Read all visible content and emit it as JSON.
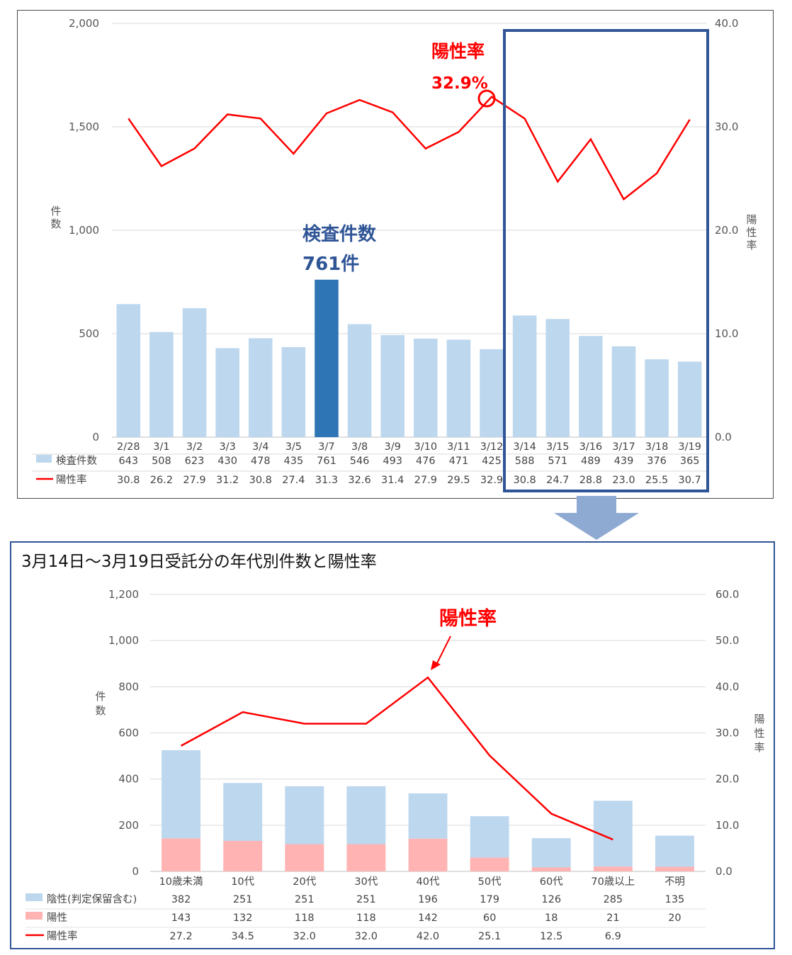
{
  "chart_data": [
    {
      "type": "bar",
      "categories": [
        "2/28",
        "3/1",
        "3/2",
        "3/3",
        "3/4",
        "3/5",
        "3/7",
        "3/8",
        "3/9",
        "3/10",
        "3/11",
        "3/12",
        "3/14",
        "3/15",
        "3/16",
        "3/17",
        "3/18",
        "3/19"
      ],
      "series": [
        {
          "name": "検査件数",
          "type": "bar",
          "axis": "left",
          "color": "#bdd7ee",
          "highlight_color": "#2e75b6",
          "highlight_index": 6,
          "values": [
            643,
            508,
            623,
            430,
            478,
            435,
            761,
            546,
            493,
            476,
            471,
            425,
            588,
            571,
            489,
            439,
            376,
            365
          ]
        },
        {
          "name": "陽性率",
          "type": "line",
          "axis": "right",
          "color": "#ff0000",
          "values": [
            30.8,
            26.2,
            27.9,
            31.2,
            30.8,
            27.4,
            31.3,
            32.6,
            31.4,
            27.9,
            29.5,
            32.9,
            30.8,
            24.7,
            28.8,
            23.0,
            25.5,
            30.7
          ]
        }
      ],
      "ylabel": "件数",
      "y2label": "陽性率",
      "ylim": [
        0,
        2000
      ],
      "y2lim": [
        0,
        40
      ],
      "yticks": [
        "0",
        "500",
        "1,000",
        "1,500",
        "2,000"
      ],
      "y2ticks": [
        "0.0",
        "10.0",
        "20.0",
        "30.0",
        "40.0"
      ],
      "grid": true,
      "table": {
        "rows": [
          {
            "label": "検査件数",
            "values": [
              "643",
              "508",
              "623",
              "430",
              "478",
              "435",
              "761",
              "546",
              "493",
              "476",
              "471",
              "425",
              "588",
              "571",
              "489",
              "439",
              "376",
              "365"
            ]
          },
          {
            "label": "陽性率",
            "values": [
              "30.8",
              "26.2",
              "27.9",
              "31.2",
              "30.8",
              "27.4",
              "31.3",
              "32.6",
              "31.4",
              "27.9",
              "29.5",
              "32.9",
              "30.8",
              "24.7",
              "28.8",
              "23.0",
              "25.5",
              "30.7"
            ]
          }
        ]
      },
      "annotations": [
        {
          "text": "陽性率",
          "color": "#ff0000"
        },
        {
          "text": "32.9%",
          "color": "#ff0000"
        },
        {
          "text": "検査件数",
          "color": "#2f5597"
        },
        {
          "text": "761件",
          "color": "#2f5597"
        }
      ],
      "highlight_box": {
        "from": "3/14",
        "to": "3/19",
        "color": "#2f5597"
      }
    },
    {
      "type": "bar",
      "title": "3月14日～3月19日受託分の年代別件数と陽性率",
      "categories": [
        "10歳未満",
        "10代",
        "20代",
        "30代",
        "40代",
        "50代",
        "60代",
        "70歳以上",
        "不明"
      ],
      "stacked": true,
      "series": [
        {
          "name": "陰性(判定保留含む)",
          "type": "bar",
          "axis": "left",
          "color": "#bdd7ee",
          "values": [
            382,
            251,
            251,
            251,
            196,
            179,
            126,
            285,
            135
          ]
        },
        {
          "name": "陽性",
          "type": "bar",
          "axis": "left",
          "color": "#ffb3b3",
          "values": [
            143,
            132,
            118,
            118,
            142,
            60,
            18,
            21,
            20
          ]
        },
        {
          "name": "陽性率",
          "type": "line",
          "axis": "right",
          "color": "#ff0000",
          "values": [
            27.2,
            34.5,
            32.0,
            32.0,
            42.0,
            25.1,
            12.5,
            6.9,
            null
          ]
        }
      ],
      "ylabel": "件数",
      "y2label": "陽性率",
      "ylim": [
        0,
        1200
      ],
      "y2lim": [
        0,
        60
      ],
      "yticks": [
        "0",
        "200",
        "400",
        "600",
        "800",
        "1,000",
        "1,200"
      ],
      "y2ticks": [
        "0.0",
        "10.0",
        "20.0",
        "30.0",
        "40.0",
        "50.0",
        "60.0"
      ],
      "grid": true,
      "table": {
        "rows": [
          {
            "label": "陰性(判定保留含む)",
            "values": [
              "382",
              "251",
              "251",
              "251",
              "196",
              "179",
              "126",
              "285",
              "135"
            ]
          },
          {
            "label": "陽性",
            "values": [
              "143",
              "132",
              "118",
              "118",
              "142",
              "60",
              "18",
              "21",
              "20"
            ]
          },
          {
            "label": "陽性率",
            "values": [
              "27.2",
              "34.5",
              "32.0",
              "32.0",
              "42.0",
              "25.1",
              "12.5",
              "6.9",
              ""
            ]
          }
        ]
      },
      "annotations": [
        {
          "text": "陽性率",
          "color": "#ff0000"
        }
      ]
    }
  ]
}
